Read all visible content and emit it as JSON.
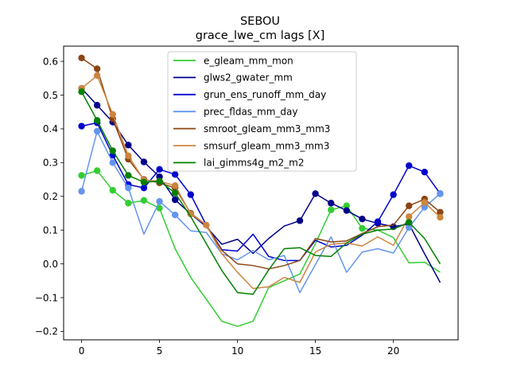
{
  "chart_data": {
    "type": "line",
    "title": "SEBOU",
    "subtitle": "grace_lwe_cm lags [X]",
    "xlabel": "",
    "ylabel": "",
    "xlim": [
      -1.15,
      24.15
    ],
    "ylim": [
      -0.225,
      0.645
    ],
    "xticks": [
      0,
      5,
      10,
      15,
      20
    ],
    "yticks": [
      -0.2,
      -0.1,
      0.0,
      0.1,
      0.2,
      0.3,
      0.4,
      0.5,
      0.6
    ],
    "ytick_labels": [
      "−0.2",
      "−0.1",
      "0.0",
      "0.1",
      "0.2",
      "0.3",
      "0.4",
      "0.5",
      "0.6"
    ],
    "grid": false,
    "legend_placement": "upper-center",
    "x": [
      0,
      1,
      2,
      3,
      4,
      5,
      6,
      7,
      8,
      9,
      10,
      11,
      12,
      13,
      14,
      15,
      16,
      17,
      18,
      19,
      20,
      21,
      22,
      23
    ],
    "series": [
      {
        "name": "e_gleam_mm_mon",
        "color": "#32cd32",
        "values": [
          0.262,
          0.276,
          0.218,
          0.18,
          0.188,
          0.165,
          0.045,
          -0.04,
          -0.105,
          -0.17,
          -0.185,
          -0.17,
          -0.07,
          -0.05,
          -0.03,
          0.06,
          0.16,
          0.172,
          0.105,
          0.1,
          0.078,
          0.003,
          0.005,
          -0.025
        ],
        "markers": [
          0,
          1,
          2,
          3,
          4,
          5,
          16,
          17,
          18
        ]
      },
      {
        "name": "glws2_gwater_mm",
        "color": "#00008b",
        "values": [
          0.52,
          0.47,
          0.42,
          0.352,
          0.302,
          0.258,
          0.19,
          0.148,
          0.11,
          0.058,
          0.073,
          0.031,
          0.075,
          0.112,
          0.128,
          0.208,
          0.18,
          0.158,
          0.133,
          0.12,
          0.11,
          0.118,
          0.03,
          -0.055
        ],
        "markers": [
          0,
          1,
          2,
          3,
          4,
          5,
          6,
          7,
          14,
          15,
          16,
          17,
          18,
          19,
          20,
          21
        ]
      },
      {
        "name": "grun_ens_runoff_mm_day",
        "color": "#0000cd",
        "values": [
          0.408,
          0.418,
          0.322,
          0.235,
          0.225,
          0.28,
          0.265,
          0.205,
          0.115,
          0.042,
          0.038,
          0.088,
          0.022,
          0.01,
          0.01,
          0.07,
          0.05,
          0.055,
          0.085,
          0.125,
          0.205,
          0.291,
          0.272,
          0.208
        ],
        "markers": [
          0,
          1,
          2,
          3,
          4,
          5,
          6,
          7,
          19,
          20,
          21,
          22,
          23
        ]
      },
      {
        "name": "prec_fldas_mm_day",
        "color": "#6495ed",
        "values": [
          0.215,
          0.393,
          0.3,
          0.225,
          0.088,
          0.185,
          0.145,
          0.098,
          0.093,
          0.03,
          0.012,
          0.04,
          0.012,
          0.025,
          -0.085,
          -0.002,
          0.08,
          -0.025,
          0.035,
          0.045,
          0.032,
          0.108,
          0.168,
          0.208
        ],
        "markers": [
          0,
          1,
          2,
          3,
          5,
          6,
          21,
          22,
          23
        ]
      },
      {
        "name": "smroot_gleam_mm3_mm3",
        "color": "#8b4513",
        "values": [
          0.61,
          0.578,
          0.43,
          0.31,
          0.25,
          0.24,
          0.225,
          0.15,
          0.115,
          0.04,
          0.0,
          -0.005,
          -0.015,
          -0.005,
          0.01,
          0.075,
          0.065,
          0.068,
          0.09,
          0.11,
          0.115,
          0.172,
          0.192,
          0.153
        ],
        "markers": [
          0,
          1,
          2,
          3,
          4,
          5,
          6,
          7,
          21,
          22,
          23
        ]
      },
      {
        "name": "smsurf_gleam_mm3_mm3",
        "color": "#cd853f",
        "values": [
          0.52,
          0.558,
          0.443,
          0.32,
          0.248,
          0.245,
          0.232,
          0.148,
          0.115,
          0.03,
          -0.025,
          -0.073,
          -0.068,
          -0.04,
          -0.055,
          0.035,
          0.058,
          0.062,
          0.053,
          0.08,
          0.055,
          0.14,
          0.182,
          0.138
        ],
        "markers": [
          0,
          1,
          2,
          3,
          4,
          5,
          6,
          7,
          8,
          21,
          22,
          23
        ]
      },
      {
        "name": "lai_gimms4g_m2_m2",
        "color": "#008000",
        "values": [
          0.51,
          0.425,
          0.335,
          0.262,
          0.242,
          0.245,
          0.21,
          0.14,
          0.06,
          -0.02,
          -0.085,
          -0.09,
          -0.018,
          0.045,
          0.048,
          0.025,
          0.022,
          0.062,
          0.088,
          0.1,
          0.103,
          0.123,
          0.075,
          0.0
        ],
        "markers": [
          0,
          1,
          2,
          3,
          4,
          5,
          6,
          21
        ]
      }
    ]
  }
}
